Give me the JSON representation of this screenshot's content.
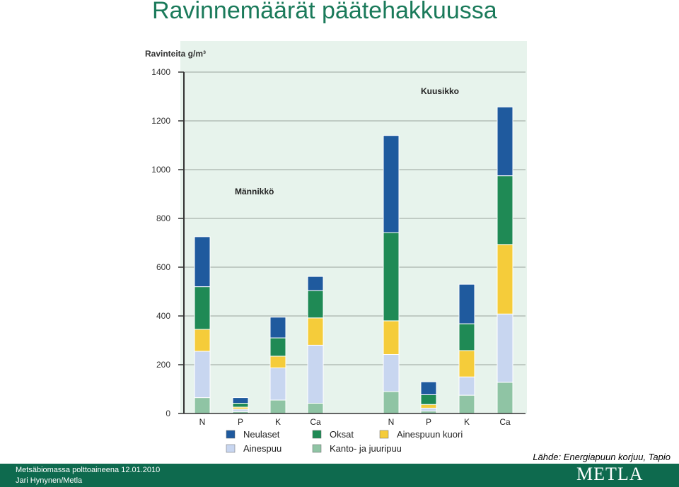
{
  "slide": {
    "title": "Ravinnemäärät päätehakkuussa",
    "source": "Lähde: Energiapuun korjuu, Tapio",
    "footer_line1": "Metsäbiomassa polttoaineena 12.01.2010",
    "footer_line2": "Jari Hynynen/Metla",
    "logo": "METLA"
  },
  "colors": {
    "plot_bg": "#e7f3ec",
    "footer": "#0e6a4e",
    "title": "#1a7a5a"
  },
  "chart_data": {
    "type": "bar",
    "stacked": true,
    "ylabel": "Ravinteita g/m³",
    "ylim": [
      0,
      1400
    ],
    "yticks": [
      0,
      200,
      400,
      600,
      800,
      1000,
      1200,
      1400
    ],
    "grid": true,
    "groups": [
      {
        "name": "Männikkö",
        "categories": [
          "N",
          "P",
          "K",
          "Ca"
        ]
      },
      {
        "name": "Kuusikko",
        "categories": [
          "N",
          "P",
          "K",
          "Ca"
        ]
      }
    ],
    "categories": [
      "N",
      "P",
      "K",
      "Ca",
      "N",
      "P",
      "K",
      "Ca"
    ],
    "series": [
      {
        "name": "Kanto- ja juuripuu",
        "color": "#8fc4a4",
        "values": [
          65,
          8,
          55,
          42,
          90,
          10,
          75,
          128
        ]
      },
      {
        "name": "Ainespuu",
        "color": "#c8d6f0",
        "values": [
          190,
          10,
          132,
          238,
          152,
          12,
          75,
          280
        ]
      },
      {
        "name": "Ainespuun kuori",
        "color": "#f5cc3a",
        "values": [
          90,
          8,
          48,
          112,
          138,
          15,
          108,
          285
        ]
      },
      {
        "name": "Oksat",
        "color": "#1f8a55",
        "values": [
          175,
          16,
          75,
          112,
          362,
          40,
          110,
          282
        ]
      },
      {
        "name": "Neulaset",
        "color": "#1f5a9e",
        "values": [
          205,
          23,
          85,
          58,
          398,
          53,
          162,
          282
        ]
      }
    ],
    "legend": {
      "placement": "bottom",
      "order": [
        "Neulaset",
        "Oksat",
        "Ainespuun kuori",
        "Ainespuu",
        "Kanto- ja juuripuu"
      ]
    }
  }
}
